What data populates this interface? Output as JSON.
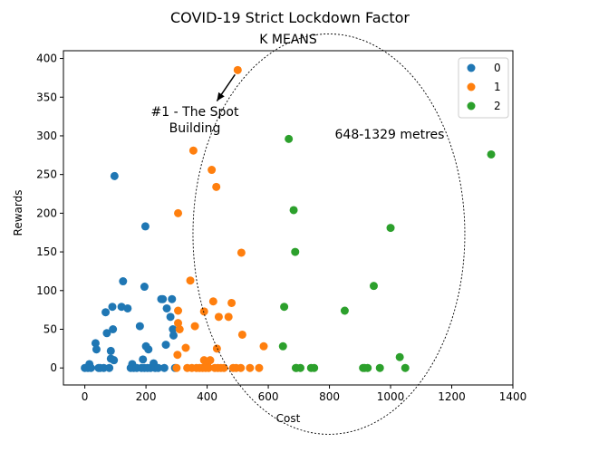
{
  "chart_data": {
    "type": "scatter",
    "title": "COVID-19 Strict Lockdown Factor",
    "subtitle": "K MEANS",
    "xlabel": "Cost",
    "ylabel": "Rewards",
    "xlim": [
      -70,
      1400
    ],
    "ylim": [
      -22,
      410
    ],
    "xticks": [
      0,
      200,
      400,
      600,
      800,
      1000,
      1200,
      1400
    ],
    "yticks": [
      0,
      50,
      100,
      150,
      200,
      250,
      300,
      350,
      400
    ],
    "grid": false,
    "legend": "top-right",
    "series": [
      {
        "name": "0",
        "color": "#1f77b4",
        "points": [
          [
            0,
            0
          ],
          [
            10,
            0
          ],
          [
            15,
            5
          ],
          [
            20,
            0
          ],
          [
            35,
            32
          ],
          [
            38,
            24
          ],
          [
            45,
            0
          ],
          [
            50,
            0
          ],
          [
            62,
            0
          ],
          [
            68,
            72
          ],
          [
            72,
            45
          ],
          [
            80,
            0
          ],
          [
            85,
            22
          ],
          [
            85,
            12
          ],
          [
            90,
            79
          ],
          [
            92,
            50
          ],
          [
            95,
            10
          ],
          [
            97,
            248
          ],
          [
            120,
            79
          ],
          [
            125,
            112
          ],
          [
            140,
            77
          ],
          [
            150,
            0
          ],
          [
            155,
            5
          ],
          [
            160,
            0
          ],
          [
            170,
            0
          ],
          [
            180,
            54
          ],
          [
            185,
            0
          ],
          [
            190,
            11
          ],
          [
            195,
            0
          ],
          [
            195,
            105
          ],
          [
            198,
            183
          ],
          [
            200,
            28
          ],
          [
            205,
            0
          ],
          [
            208,
            24
          ],
          [
            215,
            0
          ],
          [
            225,
            6
          ],
          [
            230,
            0
          ],
          [
            240,
            0
          ],
          [
            250,
            89
          ],
          [
            255,
            89
          ],
          [
            260,
            0
          ],
          [
            265,
            30
          ],
          [
            268,
            77
          ],
          [
            280,
            66
          ],
          [
            285,
            89
          ],
          [
            288,
            50
          ],
          [
            290,
            42
          ],
          [
            295,
            0
          ]
        ]
      },
      {
        "name": "1",
        "color": "#ff7f0e",
        "points": [
          [
            300,
            0
          ],
          [
            303,
            17
          ],
          [
            305,
            58
          ],
          [
            305,
            74
          ],
          [
            305,
            200
          ],
          [
            310,
            50
          ],
          [
            330,
            26
          ],
          [
            335,
            0
          ],
          [
            345,
            113
          ],
          [
            350,
            0
          ],
          [
            355,
            281
          ],
          [
            360,
            54
          ],
          [
            365,
            0
          ],
          [
            375,
            0
          ],
          [
            385,
            0
          ],
          [
            390,
            10
          ],
          [
            390,
            73
          ],
          [
            395,
            0
          ],
          [
            400,
            5
          ],
          [
            405,
            0
          ],
          [
            410,
            10
          ],
          [
            415,
            256
          ],
          [
            420,
            86
          ],
          [
            425,
            0
          ],
          [
            430,
            234
          ],
          [
            432,
            25
          ],
          [
            435,
            0
          ],
          [
            438,
            66
          ],
          [
            445,
            0
          ],
          [
            455,
            0
          ],
          [
            470,
            66
          ],
          [
            480,
            84
          ],
          [
            485,
            0
          ],
          [
            495,
            0
          ],
          [
            500,
            385
          ],
          [
            510,
            0
          ],
          [
            512,
            149
          ],
          [
            515,
            43
          ],
          [
            540,
            0
          ],
          [
            570,
            0
          ],
          [
            585,
            28
          ]
        ]
      },
      {
        "name": "2",
        "color": "#2ca02c",
        "points": [
          [
            648,
            28
          ],
          [
            652,
            79
          ],
          [
            667,
            296
          ],
          [
            690,
            0
          ],
          [
            683,
            204
          ],
          [
            688,
            150
          ],
          [
            692,
            0
          ],
          [
            705,
            0
          ],
          [
            740,
            0
          ],
          [
            750,
            0
          ],
          [
            850,
            74
          ],
          [
            910,
            0
          ],
          [
            915,
            0
          ],
          [
            925,
            0
          ],
          [
            945,
            106
          ],
          [
            965,
            0
          ],
          [
            1000,
            181
          ],
          [
            1030,
            14
          ],
          [
            1048,
            0
          ],
          [
            1329,
            276
          ]
        ]
      }
    ],
    "annotations": [
      {
        "text": "#1 - The Spot",
        "text2": "Building"
      },
      {
        "text": "648-1329 metres"
      }
    ],
    "arrow": {
      "from": [
        500,
        385
      ],
      "to": [
        432,
        345
      ]
    },
    "ellipse": {
      "center": [
        982,
        173
      ],
      "rx_data": 442,
      "ry_data": 280
    }
  }
}
